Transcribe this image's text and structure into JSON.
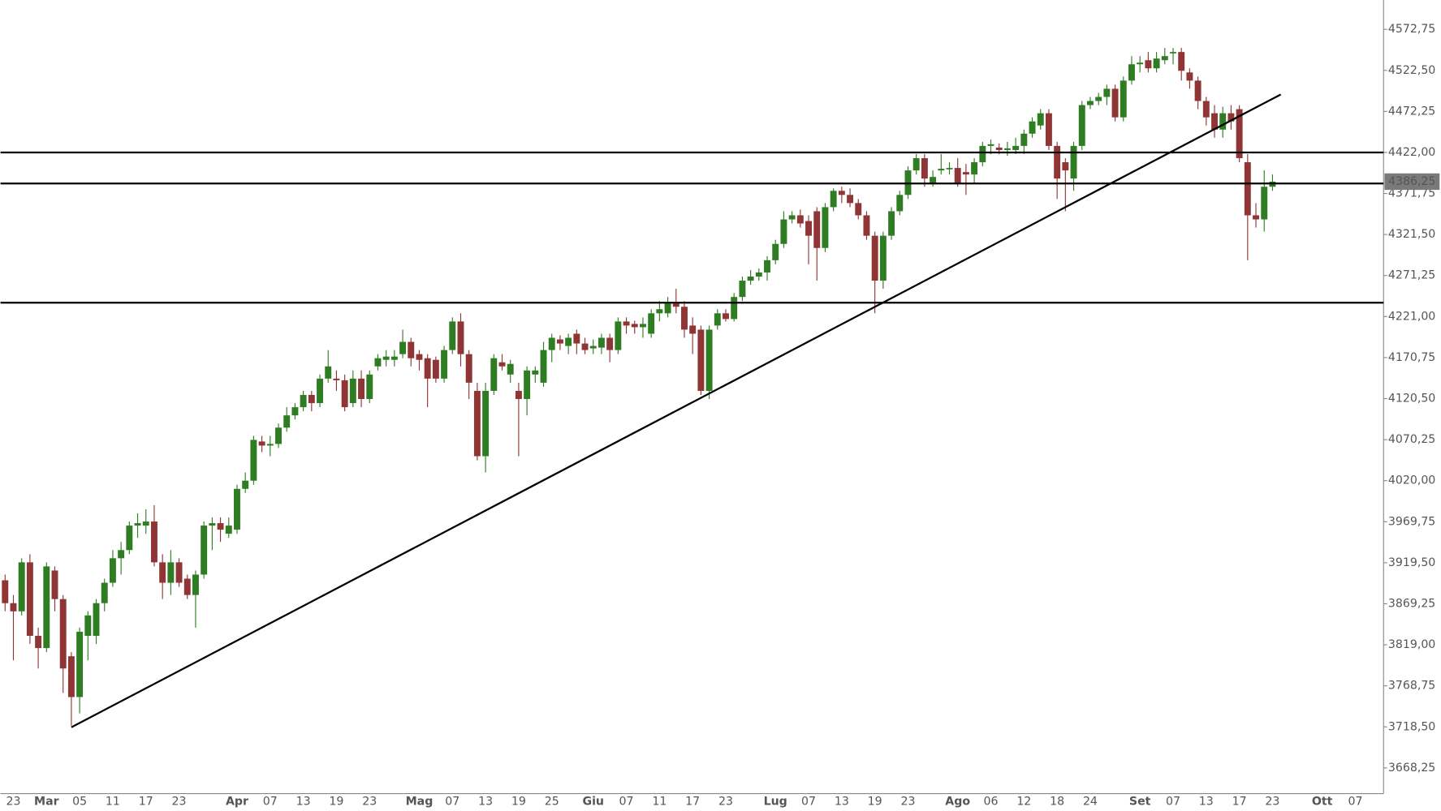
{
  "chart_data": {
    "type": "candlestick",
    "categories": [
      null,
      "23",
      null,
      null,
      null,
      "Mar",
      null,
      null,
      null,
      "05",
      null,
      null,
      null,
      "11",
      null,
      null,
      null,
      "17",
      null,
      null,
      null,
      "23",
      null,
      null,
      null,
      null,
      null,
      null,
      "Apr",
      null,
      null,
      null,
      "07",
      null,
      null,
      null,
      "13",
      null,
      null,
      null,
      "19",
      null,
      null,
      null,
      "23",
      null,
      null,
      null,
      null,
      null,
      "Mag",
      null,
      null,
      null,
      "07",
      null,
      null,
      null,
      "13",
      null,
      null,
      null,
      "19",
      null,
      null,
      null,
      "25",
      null,
      null,
      null,
      null,
      "Giu",
      null,
      null,
      null,
      "07",
      null,
      null,
      null,
      "11",
      null,
      null,
      null,
      "17",
      null,
      null,
      null,
      "23",
      null,
      null,
      null,
      null,
      null,
      "Lug",
      null,
      null,
      null,
      "07",
      null,
      null,
      null,
      "13",
      null,
      null,
      null,
      "19",
      null,
      null,
      null,
      "23",
      null,
      null,
      null,
      null,
      null,
      "Ago",
      null,
      null,
      null,
      "06",
      null,
      null,
      null,
      "12",
      null,
      null,
      null,
      "18",
      null,
      null,
      null,
      "24",
      null,
      null,
      null,
      null,
      null,
      "Set",
      null,
      null,
      null,
      "07",
      null,
      null,
      null,
      "13",
      null,
      null,
      null,
      "17",
      null,
      null,
      null,
      "23",
      null,
      null,
      null,
      null,
      null,
      "Ott",
      null,
      null,
      null,
      "07"
    ],
    "open": [
      3898,
      3870,
      3860,
      3920,
      3830,
      3815,
      3910,
      3875,
      3805,
      3755,
      3830,
      3830,
      3870,
      3895,
      3925,
      3935,
      3965,
      3965,
      3970,
      3920,
      3895,
      3920,
      3900,
      3880,
      3905,
      3965,
      3968,
      3955,
      3960,
      4010,
      4020,
      4068,
      4063,
      4065,
      4085,
      4100,
      4110,
      4125,
      4115,
      4145,
      4145,
      4143,
      4115,
      4145,
      4120,
      4160,
      4168,
      4168,
      4175,
      4190,
      4175,
      4170,
      4168,
      4145,
      4180,
      4215,
      4175,
      4130,
      4050,
      4130,
      4165,
      4150,
      4130,
      4120,
      4150,
      4140,
      4180,
      4193,
      4185,
      4200,
      4188,
      4182,
      4183,
      4195,
      4180,
      4215,
      4212,
      4208,
      4200,
      4225,
      4225,
      4237,
      4233,
      4210,
      4205,
      4130,
      4210,
      4225,
      4218,
      4245,
      4265,
      4270,
      4275,
      4290,
      4310,
      4340,
      4345,
      4338,
      4350,
      4305,
      4355,
      4375,
      4370,
      4360,
      4345,
      4320,
      4265,
      4320,
      4350,
      4370,
      4400,
      4415,
      4385,
      4400,
      4402,
      4403,
      4398,
      4395,
      4410,
      4430,
      4428,
      4425,
      4425,
      4430,
      4445,
      4455,
      4470,
      4430,
      4410,
      4390,
      4430,
      4480,
      4485,
      4490,
      4500,
      4465,
      4510,
      4530,
      4535,
      4525,
      4535,
      4545,
      4545,
      4520,
      4510,
      4485,
      4470,
      4450,
      4470,
      4475,
      4410,
      4345,
      4340,
      4380,
      null,
      null,
      null,
      null,
      null,
      null,
      null,
      null,
      null,
      null
    ],
    "high": [
      3905,
      3880,
      3925,
      3930,
      3840,
      3920,
      3915,
      3880,
      3810,
      3840,
      3860,
      3875,
      3900,
      3935,
      3945,
      3970,
      3980,
      3985,
      3990,
      3930,
      3935,
      3925,
      3905,
      3910,
      3970,
      3975,
      3975,
      3975,
      4015,
      4030,
      4075,
      4075,
      4075,
      4090,
      4110,
      4115,
      4130,
      4130,
      4150,
      4180,
      4155,
      4150,
      4155,
      4155,
      4155,
      4175,
      4180,
      4180,
      4205,
      4195,
      4180,
      4175,
      4172,
      4185,
      4220,
      4225,
      4180,
      4140,
      4140,
      4175,
      4175,
      4168,
      4140,
      4160,
      4160,
      4190,
      4200,
      4198,
      4200,
      4205,
      4195,
      4193,
      4200,
      4200,
      4220,
      4220,
      4216,
      4220,
      4230,
      4240,
      4245,
      4255,
      4240,
      4220,
      4210,
      4210,
      4230,
      4230,
      4250,
      4270,
      4278,
      4280,
      4295,
      4315,
      4350,
      4350,
      4352,
      4345,
      4355,
      4360,
      4378,
      4380,
      4378,
      4365,
      4350,
      4325,
      4325,
      4355,
      4375,
      4405,
      4420,
      4420,
      4400,
      4420,
      4410,
      4415,
      4408,
      4415,
      4435,
      4438,
      4433,
      4435,
      4440,
      4450,
      4465,
      4475,
      4475,
      4435,
      4415,
      4435,
      4485,
      4490,
      4495,
      4505,
      4505,
      4515,
      4540,
      4540,
      4545,
      4545,
      4550,
      4550,
      4550,
      4525,
      4515,
      4490,
      4480,
      4478,
      4480,
      4480,
      4420,
      4360,
      4400,
      4395,
      null,
      null,
      null,
      null,
      null,
      null,
      null,
      null,
      null,
      null
    ],
    "low": [
      3860,
      3800,
      3855,
      3820,
      3790,
      3810,
      3860,
      3760,
      3720,
      3735,
      3800,
      3820,
      3860,
      3890,
      3905,
      3930,
      3950,
      3955,
      3915,
      3875,
      3880,
      3890,
      3875,
      3840,
      3900,
      3935,
      3945,
      3950,
      3955,
      4005,
      4015,
      4055,
      4050,
      4060,
      4080,
      4095,
      4105,
      4105,
      4110,
      4140,
      4130,
      4105,
      4110,
      4110,
      4115,
      4155,
      4160,
      4160,
      4170,
      4160,
      4155,
      4110,
      4140,
      4140,
      4175,
      4160,
      4120,
      4045,
      4030,
      4125,
      4155,
      4140,
      4050,
      4100,
      4140,
      4135,
      4165,
      4180,
      4175,
      4175,
      4175,
      4175,
      4175,
      4165,
      4175,
      4200,
      4200,
      4195,
      4195,
      4215,
      4220,
      4225,
      4195,
      4175,
      4125,
      4120,
      4205,
      4215,
      4215,
      4240,
      4260,
      4265,
      4265,
      4285,
      4305,
      4335,
      4330,
      4285,
      4265,
      4300,
      4350,
      4360,
      4355,
      4340,
      4315,
      4225,
      4255,
      4315,
      4345,
      4365,
      4395,
      4380,
      4380,
      4395,
      4395,
      4380,
      4370,
      4385,
      4405,
      4420,
      4420,
      4418,
      4420,
      4420,
      4440,
      4450,
      4425,
      4365,
      4350,
      4375,
      4425,
      4475,
      4480,
      4480,
      4460,
      4460,
      4505,
      4520,
      4520,
      4520,
      4530,
      4530,
      4510,
      4500,
      4475,
      4455,
      4440,
      4440,
      4450,
      4410,
      4290,
      4330,
      4325,
      4375,
      null,
      null,
      null,
      null,
      null,
      null,
      null,
      null,
      null,
      null
    ],
    "close": [
      3870,
      3860,
      3920,
      3830,
      3815,
      3915,
      3875,
      3790,
      3755,
      3835,
      3855,
      3870,
      3895,
      3925,
      3935,
      3965,
      3968,
      3970,
      3920,
      3895,
      3920,
      3895,
      3880,
      3905,
      3965,
      3968,
      3960,
      3965,
      4010,
      4020,
      4070,
      4063,
      4065,
      4085,
      4100,
      4110,
      4125,
      4115,
      4145,
      4160,
      4143,
      4110,
      4145,
      4120,
      4150,
      4170,
      4172,
      4172,
      4190,
      4170,
      4168,
      4145,
      4145,
      4180,
      4215,
      4175,
      4140,
      4050,
      4130,
      4170,
      4160,
      4163,
      4120,
      4155,
      4155,
      4180,
      4195,
      4188,
      4195,
      4188,
      4180,
      4185,
      4195,
      4180,
      4215,
      4210,
      4208,
      4212,
      4225,
      4230,
      4237,
      4233,
      4205,
      4200,
      4130,
      4205,
      4225,
      4218,
      4245,
      4265,
      4270,
      4275,
      4290,
      4310,
      4340,
      4345,
      4335,
      4320,
      4305,
      4355,
      4375,
      4370,
      4360,
      4345,
      4320,
      4265,
      4320,
      4350,
      4370,
      4400,
      4415,
      4390,
      4392,
      4402,
      4403,
      4385,
      4395,
      4410,
      4430,
      4432,
      4425,
      4427,
      4430,
      4445,
      4460,
      4470,
      4430,
      4390,
      4400,
      4430,
      4480,
      4485,
      4490,
      4500,
      4465,
      4510,
      4530,
      4532,
      4525,
      4537,
      4540,
      4545,
      4522,
      4510,
      4485,
      4465,
      4450,
      4470,
      4460,
      4415,
      4345,
      4340,
      4380,
      4386.25,
      null,
      null,
      null,
      null,
      null,
      null,
      null,
      null,
      null,
      null
    ],
    "up_color": "#2f7d22",
    "down_color": "#8f3535",
    "ylim": [
      3636.8,
      4608.7
    ],
    "yticks": [
      {
        "value": 4572.75,
        "label": "4572,75"
      },
      {
        "value": 4522.5,
        "label": "4522,50"
      },
      {
        "value": 4472.25,
        "label": "4472,25"
      },
      {
        "value": 4422,
        "label": "4422,00"
      },
      {
        "value": 4371.75,
        "label": "4371,75"
      },
      {
        "value": 4321.5,
        "label": "4321,50"
      },
      {
        "value": 4271.25,
        "label": "4271,25"
      },
      {
        "value": 4221,
        "label": "4221,00"
      },
      {
        "value": 4170.75,
        "label": "4170,75"
      },
      {
        "value": 4120.5,
        "label": "4120,50"
      },
      {
        "value": 4070.25,
        "label": "4070,25"
      },
      {
        "value": 4020,
        "label": "4020,00"
      },
      {
        "value": 3969.75,
        "label": "3969,75"
      },
      {
        "value": 3919.5,
        "label": "3919,50"
      },
      {
        "value": 3869.25,
        "label": "3869,25"
      },
      {
        "value": 3819,
        "label": "3819,00"
      },
      {
        "value": 3768.75,
        "label": "3768,75"
      },
      {
        "value": 3718.5,
        "label": "3718,50"
      },
      {
        "value": 3668.25,
        "label": "3668,25"
      }
    ],
    "last_price": {
      "value": 4386.25,
      "label": "4386,25"
    },
    "hlines": [
      4422,
      4384,
      4238
    ],
    "trendline": {
      "x": [
        8,
        154
      ],
      "y": [
        3718,
        4493
      ]
    }
  }
}
